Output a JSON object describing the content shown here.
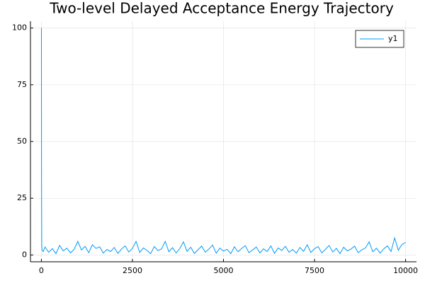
{
  "chart_data": {
    "type": "line",
    "title": "Two-level Delayed Acceptance Energy Trajectory",
    "x": [
      1,
      5,
      10,
      20,
      50,
      100,
      200,
      300,
      400,
      500,
      600,
      700,
      800,
      900,
      1000,
      1100,
      1200,
      1300,
      1400,
      1500,
      1600,
      1700,
      1800,
      1900,
      2000,
      2100,
      2200,
      2300,
      2400,
      2500,
      2600,
      2700,
      2800,
      2900,
      3000,
      3100,
      3200,
      3300,
      3400,
      3500,
      3600,
      3700,
      3800,
      3900,
      4000,
      4100,
      4200,
      4300,
      4400,
      4500,
      4600,
      4700,
      4800,
      4900,
      5000,
      5100,
      5200,
      5300,
      5400,
      5500,
      5600,
      5700,
      5800,
      5900,
      6000,
      6100,
      6200,
      6300,
      6400,
      6500,
      6600,
      6700,
      6800,
      6900,
      7000,
      7100,
      7200,
      7300,
      7400,
      7500,
      7600,
      7700,
      7800,
      7900,
      8000,
      8100,
      8200,
      8300,
      8400,
      8500,
      8600,
      8700,
      8800,
      8900,
      9000,
      9100,
      9200,
      9300,
      9400,
      9500,
      9600,
      9700,
      9800,
      9900,
      10000
    ],
    "series": [
      {
        "name": "y1",
        "color": "#009af9",
        "values": [
          100,
          30,
          4,
          2,
          1.5,
          3.5,
          1.2,
          2.8,
          0.6,
          4.2,
          1.8,
          3.0,
          0.9,
          2.5,
          6.0,
          2.2,
          3.8,
          1.0,
          4.5,
          2.9,
          3.6,
          0.8,
          2.4,
          1.5,
          3.3,
          0.7,
          2.6,
          4.0,
          1.3,
          2.9,
          6.0,
          1.1,
          3.1,
          2.0,
          0.6,
          3.7,
          1.9,
          2.7,
          6.0,
          1.4,
          3.2,
          0.9,
          2.8,
          5.8,
          1.6,
          3.4,
          0.7,
          2.3,
          3.9,
          1.2,
          2.6,
          4.4,
          0.8,
          3.0,
          1.7,
          2.5,
          0.6,
          3.6,
          1.4,
          2.9,
          4.1,
          1.0,
          2.2,
          3.5,
          0.9,
          2.7,
          1.5,
          4.0,
          0.7,
          3.1,
          2.0,
          3.8,
          1.2,
          2.4,
          0.8,
          3.3,
          1.6,
          4.5,
          1.1,
          2.8,
          3.7,
          0.9,
          2.5,
          4.2,
          1.3,
          2.9,
          0.6,
          3.4,
          1.8,
          2.6,
          3.9,
          1.0,
          2.3,
          3.1,
          5.8,
          1.4,
          3.0,
          0.8,
          2.7,
          4.0,
          1.5,
          7.5,
          2.1,
          4.6,
          5.5
        ]
      }
    ],
    "xlim": [
      -300,
      10300
    ],
    "ylim": [
      -3,
      103
    ],
    "xticks": [
      0,
      2500,
      5000,
      7500,
      10000
    ],
    "yticks": [
      0,
      25,
      50,
      75,
      100
    ],
    "grid": true,
    "legend": "topright"
  }
}
